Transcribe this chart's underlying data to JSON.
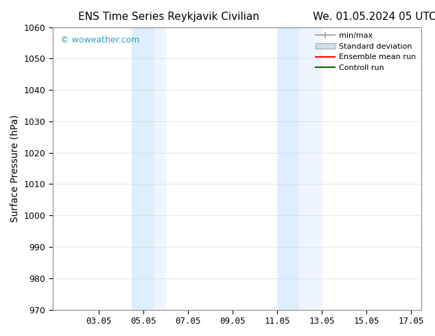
{
  "title_left": "ENS Time Series Reykjavik Civilian",
  "title_right": "We. 01.05.2024 05 UTC",
  "ylabel": "Surface Pressure (hPa)",
  "xlim": [
    1.0,
    17.5
  ],
  "ylim": [
    970,
    1060
  ],
  "yticks": [
    970,
    980,
    990,
    1000,
    1010,
    1020,
    1030,
    1040,
    1050,
    1060
  ],
  "xticks": [
    3.05,
    5.05,
    7.05,
    9.05,
    11.05,
    13.05,
    15.05,
    17.05
  ],
  "xticklabels": [
    "03.05",
    "05.05",
    "07.05",
    "09.05",
    "11.05",
    "13.05",
    "15.05",
    "17.05"
  ],
  "background_color": "#ffffff",
  "plot_bg_color": "#ffffff",
  "shaded_regions": [
    {
      "xmin": 4.55,
      "xmax": 5.55,
      "color": "#ddeeff"
    },
    {
      "xmin": 5.55,
      "xmax": 6.05,
      "color": "#eef5ff"
    },
    {
      "xmin": 11.05,
      "xmax": 12.05,
      "color": "#ddeeff"
    },
    {
      "xmin": 12.05,
      "xmax": 13.05,
      "color": "#eef5ff"
    }
  ],
  "watermark_text": "© woweather.com",
  "watermark_color": "#3399cc",
  "legend_items": [
    {
      "label": "min/max",
      "color": "#aaaaaa",
      "linestyle": "-",
      "type": "errorbar"
    },
    {
      "label": "Standard deviation",
      "color": "#ccddee",
      "linestyle": "-",
      "type": "fill"
    },
    {
      "label": "Ensemble mean run",
      "color": "#ff0000",
      "linestyle": "-",
      "type": "line"
    },
    {
      "label": "Controll run",
      "color": "#006600",
      "linestyle": "-",
      "type": "line"
    }
  ],
  "grid_color": "#cccccc",
  "grid_alpha": 0.5,
  "title_fontsize": 11,
  "tick_fontsize": 9,
  "ylabel_fontsize": 10
}
